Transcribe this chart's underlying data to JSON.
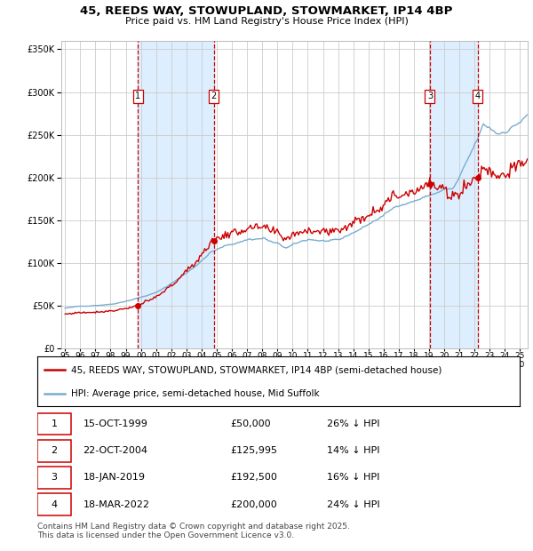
{
  "title_line1": "45, REEDS WAY, STOWUPLAND, STOWMARKET, IP14 4BP",
  "title_line2": "Price paid vs. HM Land Registry's House Price Index (HPI)",
  "legend_label_red": "45, REEDS WAY, STOWUPLAND, STOWMARKET, IP14 4BP (semi-detached house)",
  "legend_label_blue": "HPI: Average price, semi-detached house, Mid Suffolk",
  "footer": "Contains HM Land Registry data © Crown copyright and database right 2025.\nThis data is licensed under the Open Government Licence v3.0.",
  "transactions": [
    {
      "num": 1,
      "date": "15-OCT-1999",
      "price": 50000,
      "pct": "26%",
      "direction": "↓"
    },
    {
      "num": 2,
      "date": "22-OCT-2004",
      "price": 125995,
      "pct": "14%",
      "direction": "↓"
    },
    {
      "num": 3,
      "date": "18-JAN-2019",
      "price": 192500,
      "pct": "16%",
      "direction": "↓"
    },
    {
      "num": 4,
      "date": "18-MAR-2022",
      "price": 200000,
      "pct": "24%",
      "direction": "↓"
    }
  ],
  "transaction_dates_decimal": [
    1999.79,
    2004.81,
    2019.05,
    2022.21
  ],
  "transaction_prices": [
    50000,
    125995,
    192500,
    200000
  ],
  "ylim": [
    0,
    360000
  ],
  "xlim_start": 1994.75,
  "xlim_end": 2025.5,
  "background_color": "#ffffff",
  "plot_bg_color": "#ffffff",
  "shading_color": "#ddeeff",
  "grid_color": "#cccccc",
  "red_color": "#cc0000",
  "blue_color": "#7aadcf",
  "dashed_color": "#cc0000",
  "title_fontsize": 9.5,
  "subtitle_fontsize": 8.5,
  "tick_fontsize": 7,
  "legend_fontsize": 7.5,
  "table_fontsize": 8,
  "footer_fontsize": 6.5
}
